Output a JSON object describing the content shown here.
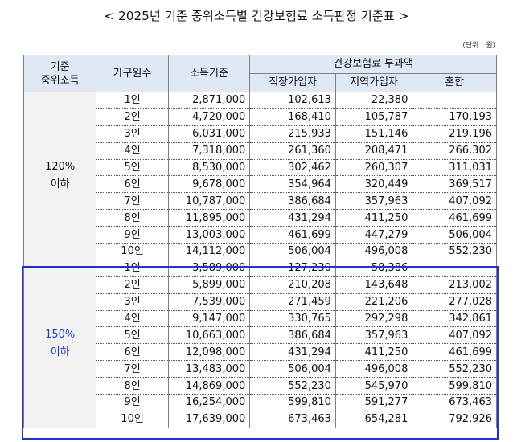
{
  "title": "< 2025년 기준 중위소득별 건강보험료 소득판정 기준표 >",
  "unit": "(단위 : 원)",
  "headers": {
    "median_income": "기준\n중위소득",
    "household": "가구원수",
    "income_standard": "소득기준",
    "premium_group": "건강보험료 부과액",
    "employee": "직장가입자",
    "regional": "지역가입자",
    "mixed": "혼합"
  },
  "groups": [
    {
      "label_line1": "120%",
      "label_line2": "이하",
      "rows": [
        {
          "persons": "1인",
          "income": "2,871,000",
          "employee": "102,613",
          "regional": "22,380",
          "mixed": "–"
        },
        {
          "persons": "2인",
          "income": "4,720,000",
          "employee": "168,410",
          "regional": "105,787",
          "mixed": "170,193"
        },
        {
          "persons": "3인",
          "income": "6,031,000",
          "employee": "215,933",
          "regional": "151,146",
          "mixed": "219,196"
        },
        {
          "persons": "4인",
          "income": "7,318,000",
          "employee": "261,360",
          "regional": "208,471",
          "mixed": "266,302"
        },
        {
          "persons": "5인",
          "income": "8,530,000",
          "employee": "302,462",
          "regional": "260,307",
          "mixed": "311,031"
        },
        {
          "persons": "6인",
          "income": "9,678,000",
          "employee": "354,964",
          "regional": "320,449",
          "mixed": "369,517"
        },
        {
          "persons": "7인",
          "income": "10,787,000",
          "employee": "386,684",
          "regional": "357,963",
          "mixed": "407,092"
        },
        {
          "persons": "8인",
          "income": "11,895,000",
          "employee": "431,294",
          "regional": "411,250",
          "mixed": "461,699"
        },
        {
          "persons": "9인",
          "income": "13,003,000",
          "employee": "461,699",
          "regional": "447,279",
          "mixed": "506,004"
        },
        {
          "persons": "10인",
          "income": "14,112,000",
          "employee": "506,004",
          "regional": "496,008",
          "mixed": "552,230"
        }
      ]
    },
    {
      "label_line1": "150%",
      "label_line2": "이하",
      "rows": [
        {
          "persons": "1인",
          "income": "3,589,000",
          "employee": "127,230",
          "regional": "58,386",
          "mixed": "–"
        },
        {
          "persons": "2인",
          "income": "5,899,000",
          "employee": "210,208",
          "regional": "143,648",
          "mixed": "213,002"
        },
        {
          "persons": "3인",
          "income": "7,539,000",
          "employee": "271,459",
          "regional": "221,206",
          "mixed": "277,028"
        },
        {
          "persons": "4인",
          "income": "9,147,000",
          "employee": "330,765",
          "regional": "292,298",
          "mixed": "342,861"
        },
        {
          "persons": "5인",
          "income": "10,663,000",
          "employee": "386,684",
          "regional": "357,963",
          "mixed": "407,092"
        },
        {
          "persons": "6인",
          "income": "12,098,000",
          "employee": "431,294",
          "regional": "411,250",
          "mixed": "461,699"
        },
        {
          "persons": "7인",
          "income": "13,483,000",
          "employee": "506,004",
          "regional": "496,008",
          "mixed": "552,230"
        },
        {
          "persons": "8인",
          "income": "14,869,000",
          "employee": "552,230",
          "regional": "545,970",
          "mixed": "599,810"
        },
        {
          "persons": "9인",
          "income": "16,254,000",
          "employee": "599,810",
          "regional": "591,277",
          "mixed": "673,463"
        },
        {
          "persons": "10인",
          "income": "17,639,000",
          "employee": "673,463",
          "regional": "654,281",
          "mixed": "792,926"
        }
      ]
    }
  ],
  "colors": {
    "header_bg": "#dfe8f5",
    "group_bg": "#f2f2f2",
    "highlight": "#2233cc"
  }
}
